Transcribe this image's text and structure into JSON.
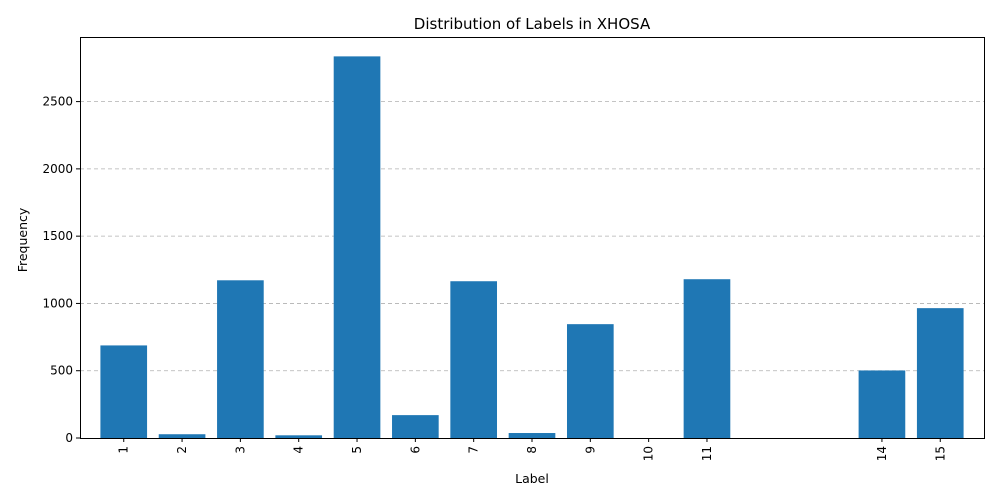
{
  "chart_data": {
    "type": "bar",
    "title": "Distribution of Labels in XHOSA",
    "xlabel": "Label",
    "ylabel": "Frequency",
    "x": [
      1,
      2,
      3,
      4,
      5,
      6,
      7,
      8,
      9,
      10,
      11,
      14,
      15
    ],
    "x_tick_labels": [
      "1",
      "2",
      "3",
      "4",
      "5",
      "6",
      "7",
      "8",
      "9",
      "10",
      "11",
      "14",
      "15"
    ],
    "values": [
      688,
      28,
      1172,
      20,
      2836,
      170,
      1165,
      37,
      846,
      0,
      1180,
      502,
      965
    ],
    "ylim": [
      0,
      2980
    ],
    "xlim": [
      0.25,
      15.75
    ],
    "y_ticks": [
      0,
      500,
      1000,
      1500,
      2000,
      2500
    ],
    "bar_color": "#1f77b4",
    "grid": "y-dashed",
    "x_tick_rotation": "vertical"
  }
}
